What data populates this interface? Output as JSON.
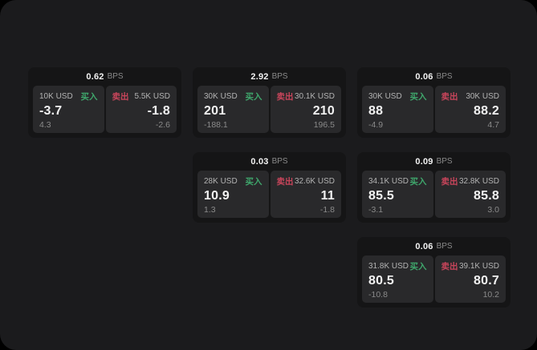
{
  "window": {
    "background": "#000000",
    "panel_background": "#1b1b1d"
  },
  "labels": {
    "buy": "买入",
    "sell": "卖出",
    "bps_unit": "BPS"
  },
  "colors": {
    "buy_green": "#3fa76c",
    "sell_red": "#c9455b",
    "card_background": "#151516",
    "tile_background": "#29292b",
    "primary_text": "#f2f2f2",
    "muted_text": "#8a8a8a",
    "size_text": "#b3b3b3"
  },
  "cards": [
    {
      "spread": "0.62",
      "row": 1,
      "col": 1,
      "buy": {
        "size": "10K USD",
        "price": "-3.7",
        "change": "4.3"
      },
      "sell": {
        "size": "5.5K USD",
        "price": "-1.8",
        "change": "-2.6"
      }
    },
    {
      "spread": "2.92",
      "row": 1,
      "col": 2,
      "buy": {
        "size": "30K USD",
        "price": "201",
        "change": "-188.1"
      },
      "sell": {
        "size": "30.1K USD",
        "price": "210",
        "change": "196.5"
      }
    },
    {
      "spread": "0.06",
      "row": 1,
      "col": 3,
      "buy": {
        "size": "30K USD",
        "price": "88",
        "change": "-4.9"
      },
      "sell": {
        "size": "30K USD",
        "price": "88.2",
        "change": "4.7"
      }
    },
    {
      "spread": "0.03",
      "row": 2,
      "col": 2,
      "buy": {
        "size": "28K USD",
        "price": "10.9",
        "change": "1.3"
      },
      "sell": {
        "size": "32.6K USD",
        "price": "11",
        "change": "-1.8"
      }
    },
    {
      "spread": "0.09",
      "row": 2,
      "col": 3,
      "buy": {
        "size": "34.1K USD",
        "price": "85.5",
        "change": "-3.1"
      },
      "sell": {
        "size": "32.8K USD",
        "price": "85.8",
        "change": "3.0"
      }
    },
    {
      "spread": "0.06",
      "row": 3,
      "col": 3,
      "buy": {
        "size": "31.8K USD",
        "price": "80.5",
        "change": "-10.8"
      },
      "sell": {
        "size": "39.1K USD",
        "price": "80.7",
        "change": "10.2"
      }
    }
  ]
}
